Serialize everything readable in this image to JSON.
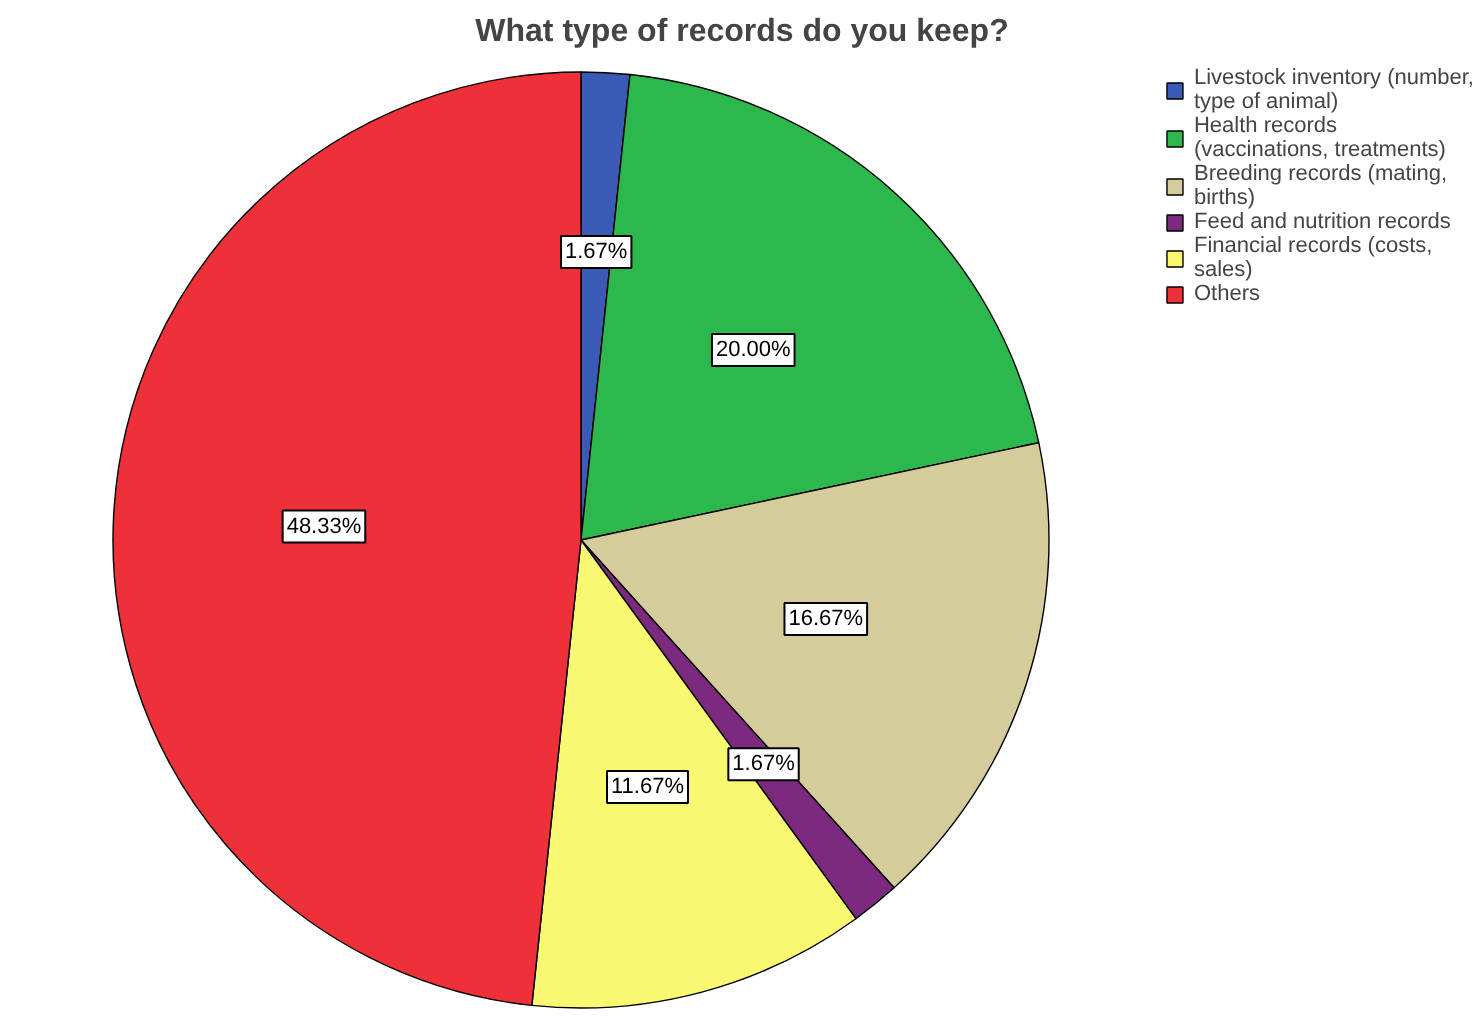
{
  "chart_data": {
    "type": "pie",
    "title": "What type of records do you keep?",
    "categories": [
      "Livestock inventory (number, type of animal)",
      "Health records (vaccinations, treatments)",
      "Breeding records (mating, births)",
      "Feed and nutrition records",
      "Financial records (costs, sales)",
      "Others"
    ],
    "values": [
      1.67,
      20.0,
      16.67,
      1.67,
      11.67,
      48.33
    ],
    "value_labels": [
      "1.67%",
      "20.00%",
      "16.67%",
      "1.67%",
      "11.67%",
      "48.33%"
    ],
    "colors": [
      "#3a5bb5",
      "#2db84d",
      "#d4cc9a",
      "#7b2a7f",
      "#f9f871",
      "#ee3039"
    ],
    "legend": "top right"
  }
}
